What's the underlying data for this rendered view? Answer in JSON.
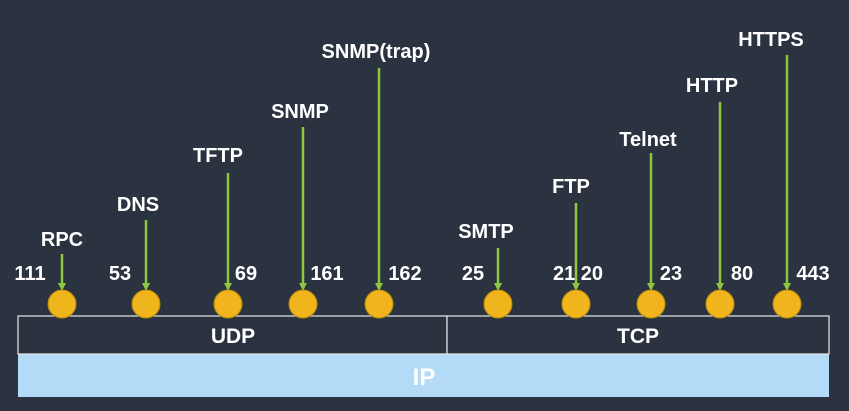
{
  "colors": {
    "background": "#2b3340",
    "arrow": "#8dc63f",
    "port_dot": "#f0b51d",
    "port_dot_stroke": "#b98a10",
    "transport_box": "#2b3340",
    "transport_border": "#e8e8e8",
    "transport_text": "#4f8fdc",
    "ip_fill": "#b3dbf7",
    "ip_text": "#2b2b2b",
    "label_text": "#ffffff"
  },
  "layers": {
    "udp": "UDP",
    "tcp": "TCP",
    "ip": "IP"
  },
  "udp_ports": [
    {
      "port": "111",
      "protocol": "RPC"
    },
    {
      "port": "53",
      "protocol": "DNS"
    },
    {
      "port": "69",
      "protocol": "TFTP"
    },
    {
      "port": "161",
      "protocol": "SNMP"
    },
    {
      "port": "162",
      "protocol": "SNMP(trap)"
    }
  ],
  "tcp_ports": [
    {
      "port": "25",
      "protocol": "SMTP"
    },
    {
      "port": "21 20",
      "protocol": "FTP"
    },
    {
      "port": "23",
      "protocol": "Telnet"
    },
    {
      "port": "80",
      "protocol": "HTTP"
    },
    {
      "port": "443",
      "protocol": "HTTPS"
    }
  ]
}
